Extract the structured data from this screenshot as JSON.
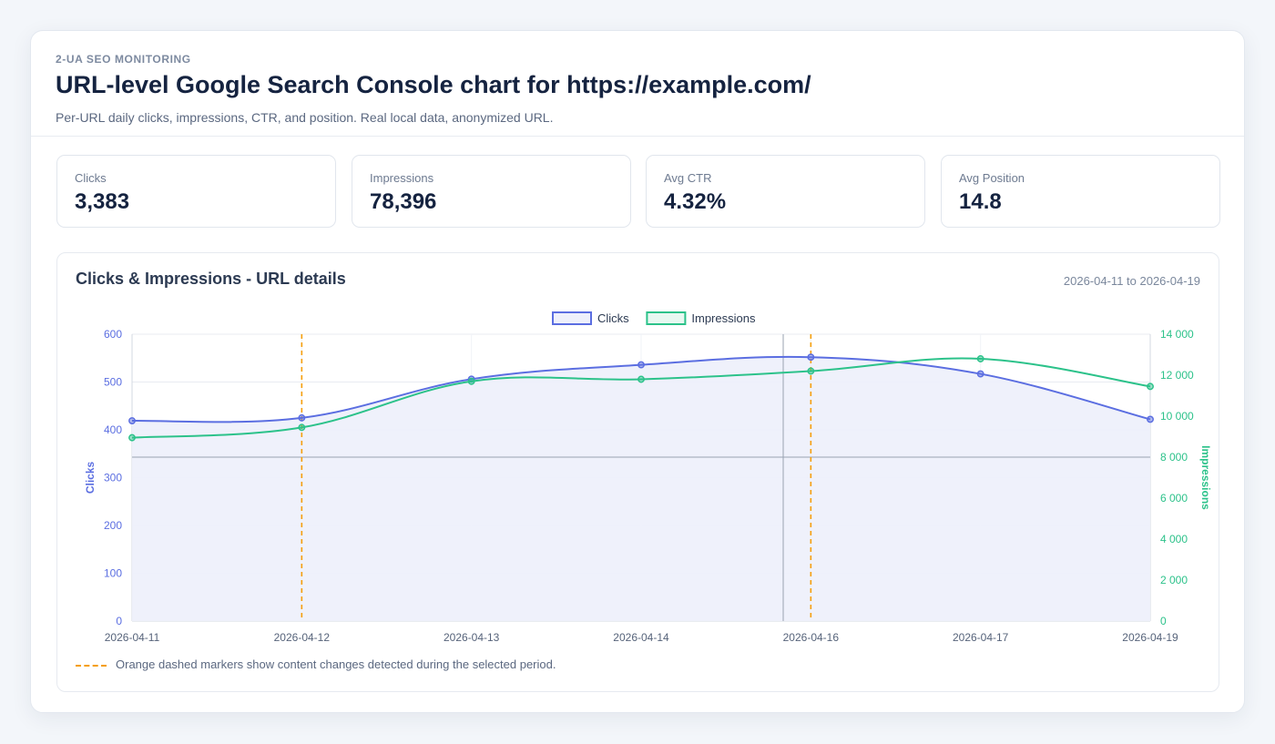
{
  "header": {
    "eyebrow": "2-UA SEO MONITORING",
    "title": "URL-level Google Search Console chart for https://example.com/",
    "subtitle": "Per-URL daily clicks, impressions, CTR, and position. Real local data, anonymized URL."
  },
  "kpis": [
    {
      "label": "Clicks",
      "value": "3,383"
    },
    {
      "label": "Impressions",
      "value": "78,396"
    },
    {
      "label": "Avg CTR",
      "value": "4.32%"
    },
    {
      "label": "Avg Position",
      "value": "14.8"
    }
  ],
  "chart_panel": {
    "title": "Clicks & Impressions - URL details",
    "range": "2026-04-11 to 2026-04-19",
    "note": "Orange dashed markers show content changes detected during the selected period."
  },
  "chart_data": {
    "type": "line",
    "x": [
      "2026-04-11",
      "2026-04-12",
      "2026-04-13",
      "2026-04-14",
      "2026-04-16",
      "2026-04-17",
      "2026-04-19"
    ],
    "series": [
      {
        "name": "Clicks",
        "axis": "left",
        "color": "#5b6ee1",
        "fill": "#eef0fb",
        "values": [
          419,
          425,
          506,
          536,
          552,
          517,
          422
        ]
      },
      {
        "name": "Impressions",
        "axis": "right",
        "color": "#2cc28a",
        "values": [
          8950,
          9450,
          11700,
          11800,
          12200,
          12800,
          11450
        ]
      }
    ],
    "y_left": {
      "label": "Clicks",
      "min": 0,
      "max": 600,
      "ticks": [
        "0",
        "100",
        "200",
        "300",
        "400",
        "500",
        "600"
      ],
      "color": "#5b6ee1"
    },
    "y_right": {
      "label": "Impressions",
      "min": 0,
      "max": 14000,
      "ticks": [
        "0",
        "2 000",
        "4 000",
        "6 000",
        "8 000",
        "10 000",
        "12 000",
        "14 000"
      ],
      "color": "#2cc28a"
    },
    "content_change_markers": [
      "2026-04-12",
      "2026-04-16"
    ],
    "marker_color": "#f59e0b",
    "legend_position": "top-center",
    "grid": true
  }
}
